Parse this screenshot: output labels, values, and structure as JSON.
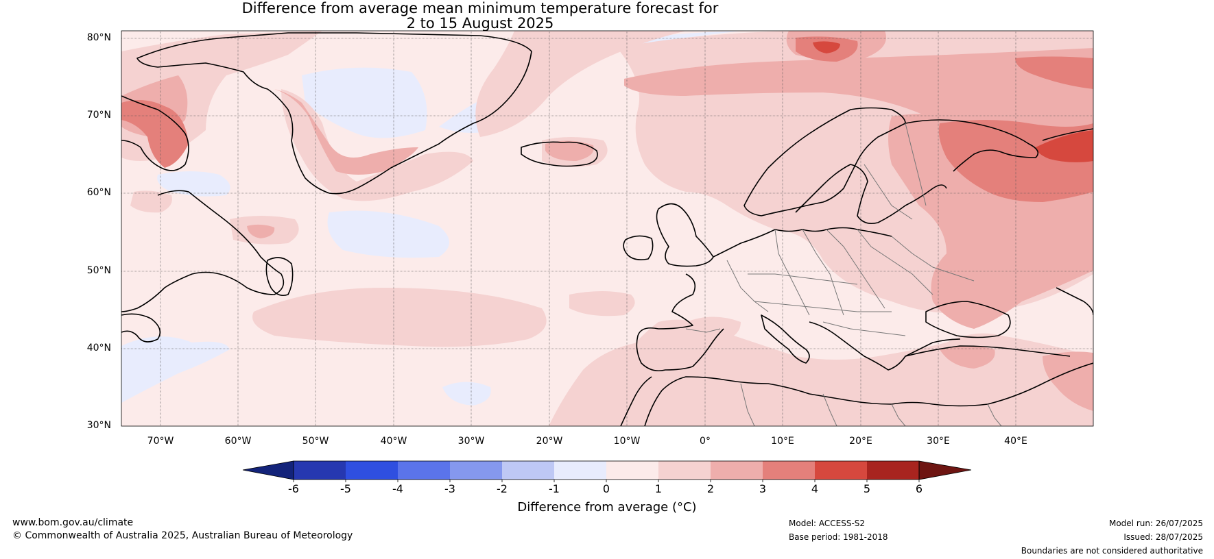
{
  "title": {
    "line1": "Difference from average mean minimum temperature forecast for",
    "line2": "2 to 15 August 2025"
  },
  "map": {
    "lat_labels": [
      "80°N",
      "70°N",
      "60°N",
      "50°N",
      "40°N",
      "30°N"
    ],
    "lon_labels": [
      "70°W",
      "60°W",
      "50°W",
      "40°W",
      "30°W",
      "20°W",
      "10°W",
      "0°",
      "10°E",
      "20°E",
      "30°E",
      "40°E"
    ],
    "extent": {
      "lon_min": -75,
      "lon_max": 50,
      "lat_min": 30,
      "lat_max": 81
    }
  },
  "colorbar": {
    "ticks": [
      "-6",
      "-5",
      "-4",
      "-3",
      "-2",
      "-1",
      "0",
      "1",
      "2",
      "3",
      "4",
      "5",
      "6"
    ],
    "colors": [
      "#13237a",
      "#2638b0",
      "#2f4fe0",
      "#5b74ea",
      "#8598ee",
      "#bec8f5",
      "#e8ecfd",
      "#fcebea",
      "#f5d2d1",
      "#eeaeac",
      "#e4807b",
      "#d6483e",
      "#a8241f",
      "#6e1512"
    ],
    "label": "Difference from average (°C)"
  },
  "footer": {
    "website": "www.bom.gov.au/climate",
    "copyright": "© Commonwealth of Australia 2025, Australian Bureau of Meteorology",
    "model": "Model: ACCESS-S2",
    "base_period": "Base period: 1981-2018",
    "model_run": "Model run: 26/07/2025",
    "issued": "Issued: 28/07/2025",
    "disclaimer": "Boundaries are not considered authoritative"
  }
}
